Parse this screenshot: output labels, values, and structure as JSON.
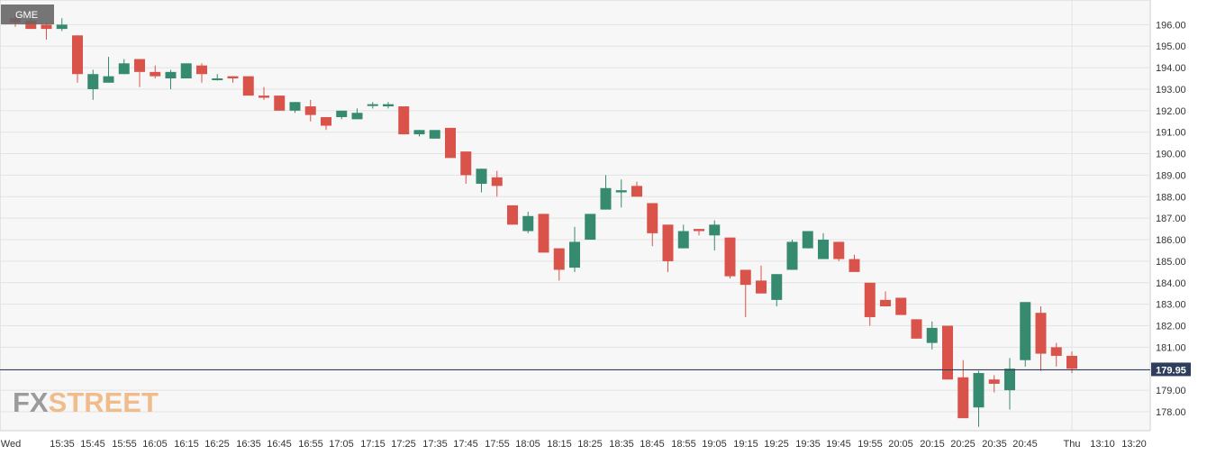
{
  "chart_data": {
    "type": "candlestick",
    "symbol": "GME",
    "last_price_label": "179.95",
    "last_price": 179.95,
    "ylim": [
      177.0,
      197.0
    ],
    "y_ticks": [
      "178.00",
      "179.00",
      "180.00",
      "181.00",
      "182.00",
      "183.00",
      "184.00",
      "185.00",
      "186.00",
      "187.00",
      "188.00",
      "189.00",
      "190.00",
      "191.00",
      "192.00",
      "193.00",
      "194.00",
      "195.00",
      "196.00"
    ],
    "x_ticks": [
      "Wed",
      "15:35",
      "15:45",
      "15:55",
      "16:05",
      "16:15",
      "16:25",
      "16:35",
      "16:45",
      "16:55",
      "17:05",
      "17:15",
      "17:25",
      "17:35",
      "17:45",
      "17:55",
      "18:05",
      "18:15",
      "18:25",
      "18:35",
      "18:45",
      "18:55",
      "19:05",
      "19:15",
      "19:25",
      "19:35",
      "19:45",
      "19:55",
      "20:05",
      "20:15",
      "20:25",
      "20:35",
      "20:45",
      "Thu",
      "13:10",
      "13:20"
    ],
    "candles": [
      {
        "o": 196.3,
        "h": 196.5,
        "l": 195.9,
        "c": 196.1
      },
      {
        "o": 196.2,
        "h": 196.3,
        "l": 195.8,
        "c": 195.8
      },
      {
        "o": 196.0,
        "h": 196.1,
        "l": 195.3,
        "c": 195.8
      },
      {
        "o": 195.8,
        "h": 196.3,
        "l": 195.7,
        "c": 196.0
      },
      {
        "o": 195.5,
        "h": 195.5,
        "l": 193.3,
        "c": 193.7
      },
      {
        "o": 193.0,
        "h": 193.9,
        "l": 192.5,
        "c": 193.7
      },
      {
        "o": 193.3,
        "h": 194.5,
        "l": 193.3,
        "c": 193.6
      },
      {
        "o": 193.7,
        "h": 194.4,
        "l": 193.7,
        "c": 194.2
      },
      {
        "o": 194.4,
        "h": 194.4,
        "l": 193.1,
        "c": 193.8
      },
      {
        "o": 193.8,
        "h": 194.1,
        "l": 193.5,
        "c": 193.6
      },
      {
        "o": 193.5,
        "h": 193.9,
        "l": 193.0,
        "c": 193.8
      },
      {
        "o": 193.5,
        "h": 194.2,
        "l": 193.5,
        "c": 194.2
      },
      {
        "o": 194.1,
        "h": 194.2,
        "l": 193.3,
        "c": 193.7
      },
      {
        "o": 193.5,
        "h": 193.7,
        "l": 193.4,
        "c": 193.5
      },
      {
        "o": 193.6,
        "h": 193.6,
        "l": 193.3,
        "c": 193.5
      },
      {
        "o": 193.6,
        "h": 193.6,
        "l": 192.7,
        "c": 192.7
      },
      {
        "o": 192.7,
        "h": 193.1,
        "l": 192.5,
        "c": 192.6
      },
      {
        "o": 192.7,
        "h": 192.7,
        "l": 192.0,
        "c": 192.0
      },
      {
        "o": 192.0,
        "h": 192.4,
        "l": 191.9,
        "c": 192.4
      },
      {
        "o": 192.2,
        "h": 192.5,
        "l": 191.5,
        "c": 191.8
      },
      {
        "o": 191.7,
        "h": 191.7,
        "l": 191.1,
        "c": 191.3
      },
      {
        "o": 191.7,
        "h": 192.0,
        "l": 191.6,
        "c": 192.0
      },
      {
        "o": 191.6,
        "h": 192.1,
        "l": 191.6,
        "c": 191.9
      },
      {
        "o": 192.3,
        "h": 192.4,
        "l": 192.1,
        "c": 192.3
      },
      {
        "o": 192.2,
        "h": 192.4,
        "l": 192.1,
        "c": 192.3
      },
      {
        "o": 192.2,
        "h": 192.2,
        "l": 190.9,
        "c": 190.9
      },
      {
        "o": 190.9,
        "h": 191.1,
        "l": 190.8,
        "c": 191.1
      },
      {
        "o": 190.7,
        "h": 191.1,
        "l": 190.7,
        "c": 191.1
      },
      {
        "o": 191.2,
        "h": 191.2,
        "l": 189.8,
        "c": 189.8
      },
      {
        "o": 190.1,
        "h": 190.1,
        "l": 188.6,
        "c": 189.0
      },
      {
        "o": 188.6,
        "h": 189.3,
        "l": 188.2,
        "c": 189.3
      },
      {
        "o": 188.9,
        "h": 189.2,
        "l": 188.0,
        "c": 188.5
      },
      {
        "o": 187.6,
        "h": 187.6,
        "l": 186.7,
        "c": 186.7
      },
      {
        "o": 186.4,
        "h": 187.3,
        "l": 186.3,
        "c": 187.1
      },
      {
        "o": 187.2,
        "h": 187.2,
        "l": 185.4,
        "c": 185.4
      },
      {
        "o": 185.6,
        "h": 185.6,
        "l": 184.1,
        "c": 184.6
      },
      {
        "o": 184.7,
        "h": 186.6,
        "l": 184.5,
        "c": 185.9
      },
      {
        "o": 186.0,
        "h": 187.2,
        "l": 186.0,
        "c": 187.2
      },
      {
        "o": 187.4,
        "h": 189.0,
        "l": 187.4,
        "c": 188.4
      },
      {
        "o": 188.2,
        "h": 188.8,
        "l": 187.5,
        "c": 188.3
      },
      {
        "o": 188.5,
        "h": 188.7,
        "l": 188.0,
        "c": 188.0
      },
      {
        "o": 187.7,
        "h": 187.7,
        "l": 185.7,
        "c": 186.3
      },
      {
        "o": 186.7,
        "h": 186.7,
        "l": 184.5,
        "c": 185.0
      },
      {
        "o": 185.6,
        "h": 186.7,
        "l": 185.6,
        "c": 186.4
      },
      {
        "o": 186.5,
        "h": 186.5,
        "l": 186.2,
        "c": 186.4
      },
      {
        "o": 186.2,
        "h": 186.9,
        "l": 185.5,
        "c": 186.7
      },
      {
        "o": 186.1,
        "h": 186.1,
        "l": 184.2,
        "c": 184.3
      },
      {
        "o": 184.6,
        "h": 184.6,
        "l": 182.4,
        "c": 183.9
      },
      {
        "o": 184.1,
        "h": 184.8,
        "l": 183.5,
        "c": 183.5
      },
      {
        "o": 183.2,
        "h": 184.4,
        "l": 182.9,
        "c": 184.4
      },
      {
        "o": 184.6,
        "h": 186.0,
        "l": 184.6,
        "c": 185.9
      },
      {
        "o": 185.6,
        "h": 186.4,
        "l": 185.6,
        "c": 186.4
      },
      {
        "o": 185.1,
        "h": 186.3,
        "l": 185.1,
        "c": 186.0
      },
      {
        "o": 185.9,
        "h": 185.9,
        "l": 185.0,
        "c": 185.1
      },
      {
        "o": 185.1,
        "h": 185.3,
        "l": 184.5,
        "c": 184.5
      },
      {
        "o": 184.0,
        "h": 184.0,
        "l": 182.0,
        "c": 182.4
      },
      {
        "o": 183.2,
        "h": 183.6,
        "l": 182.9,
        "c": 182.9
      },
      {
        "o": 183.3,
        "h": 183.3,
        "l": 182.5,
        "c": 182.5
      },
      {
        "o": 182.3,
        "h": 182.3,
        "l": 181.4,
        "c": 181.4
      },
      {
        "o": 181.2,
        "h": 182.2,
        "l": 180.9,
        "c": 181.9
      },
      {
        "o": 182.0,
        "h": 182.0,
        "l": 179.5,
        "c": 179.5
      },
      {
        "o": 179.6,
        "h": 180.4,
        "l": 177.7,
        "c": 177.7
      },
      {
        "o": 178.2,
        "h": 179.9,
        "l": 177.3,
        "c": 179.8
      },
      {
        "o": 179.5,
        "h": 179.7,
        "l": 178.9,
        "c": 179.3
      },
      {
        "o": 179.0,
        "h": 180.5,
        "l": 178.1,
        "c": 180.0
      },
      {
        "o": 180.4,
        "h": 183.1,
        "l": 180.1,
        "c": 183.1
      },
      {
        "o": 182.6,
        "h": 182.9,
        "l": 179.9,
        "c": 180.7
      },
      {
        "o": 181.0,
        "h": 181.2,
        "l": 180.1,
        "c": 180.6
      },
      {
        "o": 180.6,
        "h": 180.8,
        "l": 179.8,
        "c": 180.0
      }
    ],
    "grid": true,
    "colors": {
      "up": "#368a6f",
      "down": "#d9534b",
      "grid": "#e3e3e3",
      "background": "#f7f7f7",
      "price_line": "#2b3a5a",
      "price_tag": "#2e3d5c",
      "symbol_badge": "#666666",
      "logo_fx": "#8c8c8c",
      "logo_street": "#f0b27a"
    }
  },
  "logo": {
    "fx": "FX",
    "street": "STREET"
  }
}
